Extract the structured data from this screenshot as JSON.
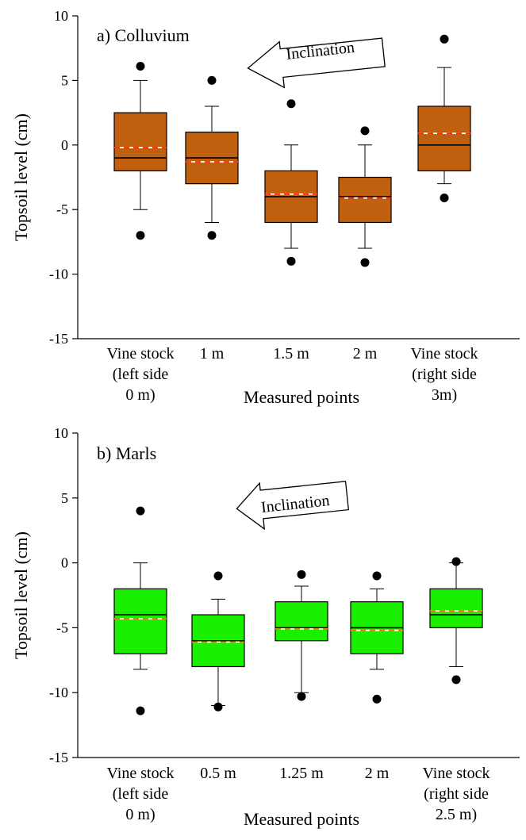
{
  "chart_data": [
    {
      "type": "box",
      "title": "a) Colluvium",
      "xlabel": "Measured points",
      "ylabel": "Topsoil level (cm)",
      "ylim": [
        -15,
        10
      ],
      "yticks": [
        "10",
        "5",
        "0",
        "-5",
        "-10",
        "-15"
      ],
      "annotation": "Inclination",
      "box_color": "#c0600f",
      "median_color": "#000000",
      "mean_color": "#ff2a00",
      "categories": [
        [
          "Vine stock",
          "(left side",
          "0 m)"
        ],
        [
          "1 m"
        ],
        [
          "1.5 m"
        ],
        [
          "2 m"
        ],
        [
          "Vine stock",
          "(right side",
          "3m)"
        ]
      ],
      "boxes": [
        {
          "whisker_low": -5,
          "q1": -2,
          "median": -1,
          "mean": -0.2,
          "q3": 2.5,
          "whisker_high": 5,
          "outliers": [
            6.1,
            -7
          ]
        },
        {
          "whisker_low": -6,
          "q1": -3,
          "median": -1,
          "mean": -1.3,
          "q3": 1,
          "whisker_high": 3,
          "outliers": [
            5,
            -7
          ]
        },
        {
          "whisker_low": -8,
          "q1": -6,
          "median": -4,
          "mean": -3.8,
          "q3": -2,
          "whisker_high": 0,
          "outliers": [
            3.2,
            -9
          ]
        },
        {
          "whisker_low": -8,
          "q1": -6,
          "median": -4,
          "mean": -4.1,
          "q3": -2.5,
          "whisker_high": 0,
          "outliers": [
            1.1,
            -9.1
          ]
        },
        {
          "whisker_low": -3,
          "q1": -2,
          "median": 0,
          "mean": 0.9,
          "q3": 3,
          "whisker_high": 6,
          "outliers": [
            8.2,
            -4.1
          ]
        }
      ]
    },
    {
      "type": "box",
      "title": "b) Marls",
      "xlabel": "Measured points",
      "ylabel": "Topsoil level (cm)",
      "ylim": [
        -15,
        10
      ],
      "yticks": [
        "10",
        "5",
        "0",
        "-5",
        "-10",
        "-15"
      ],
      "annotation": "Inclination",
      "box_color": "#1aef00",
      "median_color": "#000000",
      "mean_color": "#ff6a00",
      "categories": [
        [
          "Vine stock",
          "(left side",
          "0 m)"
        ],
        [
          "0.5 m"
        ],
        [
          "1.25 m"
        ],
        [
          "2 m"
        ],
        [
          "Vine stock",
          "(right side",
          "2.5 m)"
        ]
      ],
      "boxes": [
        {
          "whisker_low": -8.2,
          "q1": -7,
          "median": -4,
          "mean": -4.3,
          "q3": -2,
          "whisker_high": 0,
          "outliers": [
            4,
            -11.4
          ]
        },
        {
          "whisker_low": -11,
          "q1": -8,
          "median": -6,
          "mean": -6.1,
          "q3": -4,
          "whisker_high": -2.8,
          "outliers": [
            -1,
            -11.1
          ]
        },
        {
          "whisker_low": -10,
          "q1": -6,
          "median": -5,
          "mean": -5.1,
          "q3": -3,
          "whisker_high": -1.8,
          "outliers": [
            -0.9,
            -10.3
          ]
        },
        {
          "whisker_low": -8.2,
          "q1": -7,
          "median": -5,
          "mean": -5.2,
          "q3": -3,
          "whisker_high": -2,
          "outliers": [
            -1,
            -10.5
          ]
        },
        {
          "whisker_low": -8,
          "q1": -5,
          "median": -4,
          "mean": -3.7,
          "q3": -2,
          "whisker_high": 0,
          "outliers": [
            0.1,
            -9
          ]
        }
      ]
    }
  ]
}
